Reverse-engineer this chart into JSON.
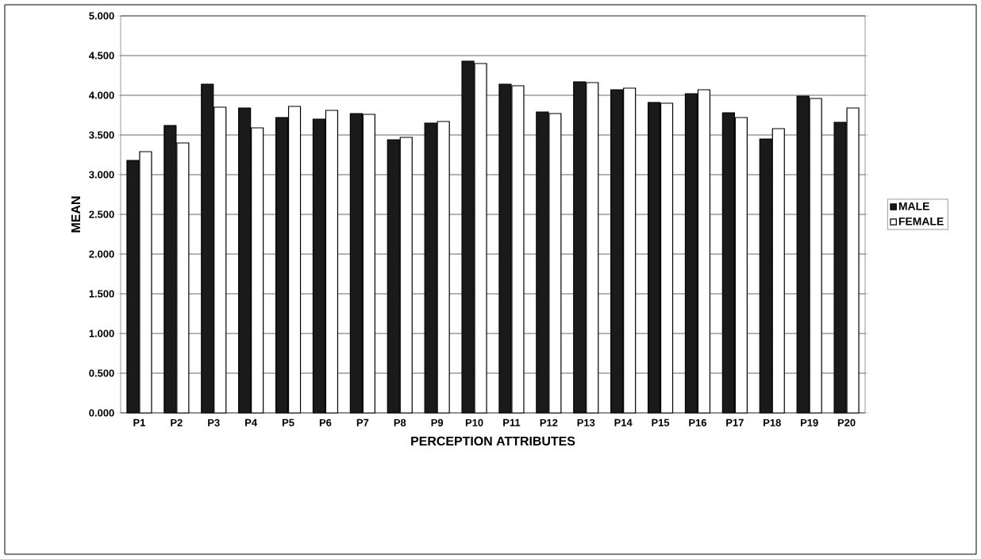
{
  "chart_data": {
    "type": "bar",
    "xlabel": "PERCEPTION ATTRIBUTES",
    "ylabel": "MEAN",
    "categories": [
      "P1",
      "P2",
      "P3",
      "P4",
      "P5",
      "P6",
      "P7",
      "P8",
      "P9",
      "P10",
      "P11",
      "P12",
      "P13",
      "P14",
      "P15",
      "P16",
      "P17",
      "P18",
      "P19",
      "P20"
    ],
    "series": [
      {
        "name": "MALE",
        "color": "#1a1a1a",
        "values": [
          3.18,
          3.62,
          4.14,
          3.84,
          3.72,
          3.7,
          3.77,
          3.44,
          3.65,
          4.43,
          4.14,
          3.79,
          4.17,
          4.07,
          3.91,
          4.02,
          3.78,
          3.45,
          3.99,
          3.66
        ]
      },
      {
        "name": "FEMALE",
        "color": "#ffffff",
        "values": [
          3.29,
          3.4,
          3.85,
          3.59,
          3.86,
          3.81,
          3.76,
          3.47,
          3.67,
          4.4,
          4.12,
          3.77,
          4.16,
          4.09,
          3.9,
          4.07,
          3.72,
          3.58,
          3.96,
          3.84
        ]
      }
    ],
    "ylim": [
      0,
      5
    ],
    "yticks": [
      {
        "value": 0,
        "label": "0.000"
      },
      {
        "value": 0.5,
        "label": "0.500"
      },
      {
        "value": 1,
        "label": "1.000"
      },
      {
        "value": 1.5,
        "label": "1.500"
      },
      {
        "value": 2,
        "label": "2.000"
      },
      {
        "value": 2.5,
        "label": "2.500"
      },
      {
        "value": 3,
        "label": "3.000"
      },
      {
        "value": 3.5,
        "label": "3.500"
      },
      {
        "value": 4,
        "label": "4.000"
      },
      {
        "value": 4.5,
        "label": "4.500"
      },
      {
        "value": 5,
        "label": "5.000"
      }
    ],
    "grid": "y",
    "legend": "right"
  }
}
